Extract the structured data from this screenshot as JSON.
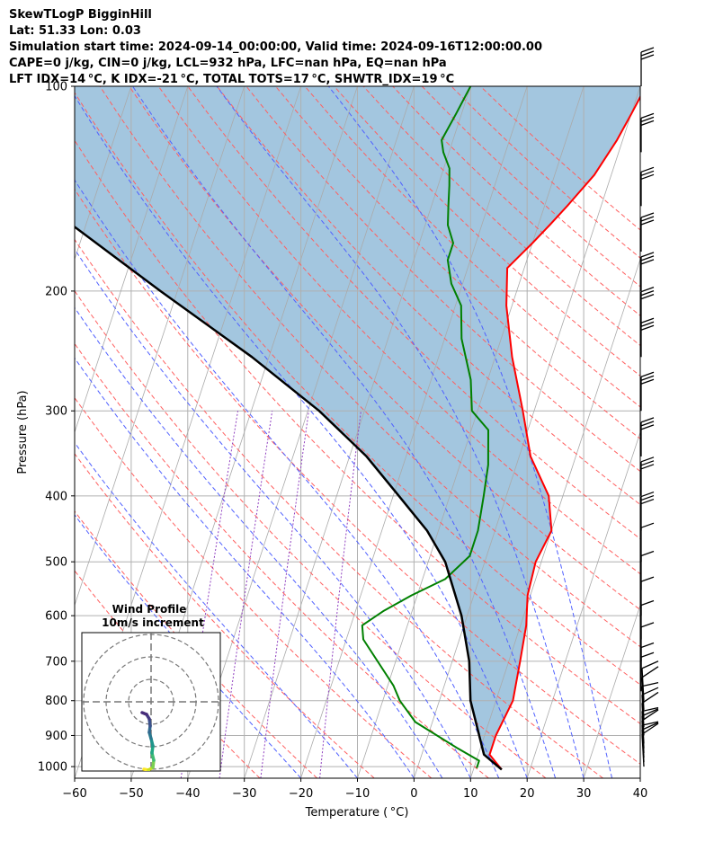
{
  "header": {
    "line1": "SkewTLogP BigginHill",
    "line2": "Lat: 51.33   Lon: 0.03",
    "line3": "Simulation start time: 2024-09-14_00:00:00, Valid time: 2024-09-16T12:00:00.00",
    "line4": "CAPE=0 j/kg, CIN=0 j/kg, LCL=932 hPa, LFC=nan hPa, EQ=nan hPa",
    "line5": "LFT IDX=14 °C, K IDX=-21 °C, TOTAL TOTS=17 °C, SHWTR_IDX=19 °C"
  },
  "chart_data": {
    "type": "line",
    "subtype": "skew-t log-p",
    "xlabel": "Temperature ($^\\circ$C)",
    "xlabel_display": "Temperature ( °C)",
    "ylabel": "Pressure (hPa)",
    "xlim": [
      -60,
      40
    ],
    "ylim": [
      1040,
      100
    ],
    "y_scale": "log",
    "x_ticks": [
      -60,
      -50,
      -40,
      -30,
      -20,
      -10,
      0,
      10,
      20,
      30,
      40
    ],
    "x_tick_labels": [
      "−60",
      "−50",
      "−40",
      "−30",
      "−20",
      "−10",
      "0",
      "10",
      "20",
      "30",
      "40"
    ],
    "y_ticks": [
      100,
      200,
      300,
      400,
      500,
      600,
      700,
      800,
      900,
      1000
    ],
    "y_tick_labels": [
      "100",
      "200",
      "300",
      "400",
      "500",
      "600",
      "700",
      "800",
      "900",
      "1000"
    ],
    "grid": true,
    "colors": {
      "temperature": "#ff0000",
      "dewpoint": "#008000",
      "parcel": "#000000",
      "fill": "#a3c6df",
      "dry_adiabat": "#ff6060",
      "moist_adiabat": "#5060ff",
      "mixing_ratio": "#9040c0",
      "isotherm": "#aaaaaa"
    },
    "series": [
      {
        "role": "temperature",
        "points": [
          [
            15,
            1010
          ],
          [
            12,
            960
          ],
          [
            12,
            900
          ],
          [
            13,
            800
          ],
          [
            12,
            700
          ],
          [
            11,
            620
          ],
          [
            9.5,
            560
          ],
          [
            9,
            500
          ],
          [
            10,
            450
          ],
          [
            7.5,
            400
          ],
          [
            2,
            350
          ],
          [
            -2,
            300
          ],
          [
            -7,
            250
          ],
          [
            -11,
            210
          ],
          [
            -13,
            185
          ],
          [
            -10,
            170
          ],
          [
            -8,
            160
          ],
          [
            -6,
            150
          ],
          [
            -3,
            135
          ],
          [
            -1,
            120
          ],
          [
            0,
            110
          ],
          [
            1,
            100
          ]
        ]
      },
      {
        "role": "dewpoint",
        "points": [
          [
            10.5,
            1005
          ],
          [
            10.5,
            980
          ],
          [
            6,
            940
          ],
          [
            -3,
            860
          ],
          [
            -7,
            800
          ],
          [
            -9,
            760
          ],
          [
            -17,
            650
          ],
          [
            -18,
            620
          ],
          [
            -15,
            590
          ],
          [
            -11,
            560
          ],
          [
            -6,
            530
          ],
          [
            -3,
            490
          ],
          [
            -3,
            450
          ],
          [
            -4,
            400
          ],
          [
            -5,
            360
          ],
          [
            -7,
            320
          ],
          [
            -11,
            300
          ],
          [
            -13,
            270
          ],
          [
            -17,
            235
          ],
          [
            -19,
            210
          ],
          [
            -22,
            195
          ],
          [
            -24,
            180
          ],
          [
            -24,
            170
          ],
          [
            -26,
            160
          ],
          [
            -27,
            150
          ],
          [
            -28,
            140
          ],
          [
            -29,
            132
          ],
          [
            -31,
            125
          ],
          [
            -32,
            120
          ],
          [
            -31,
            110
          ],
          [
            -30,
            100
          ]
        ]
      },
      {
        "role": "parcel",
        "points": [
          [
            15,
            1010
          ],
          [
            11,
            960
          ],
          [
            5.5,
            800
          ],
          [
            3,
            700
          ],
          [
            -1,
            600
          ],
          [
            -7,
            500
          ],
          [
            -12,
            450
          ],
          [
            -19,
            400
          ],
          [
            -27,
            350
          ],
          [
            -38,
            300
          ],
          [
            -53,
            250
          ],
          [
            -73,
            200
          ],
          [
            -98,
            150
          ],
          [
            -121,
            100
          ]
        ]
      }
    ],
    "wind_barbs": {
      "direction": "westerly",
      "pressures": [
        1000,
        985,
        970,
        955,
        940,
        925,
        900,
        875,
        850,
        825,
        800,
        775,
        750,
        700,
        650,
        600,
        550,
        500,
        450,
        400,
        350,
        300,
        250,
        225,
        200,
        175,
        150,
        125,
        100
      ]
    },
    "hodograph": {
      "title": "Wind Profile",
      "subtitle": "10m/s increment"
    }
  }
}
